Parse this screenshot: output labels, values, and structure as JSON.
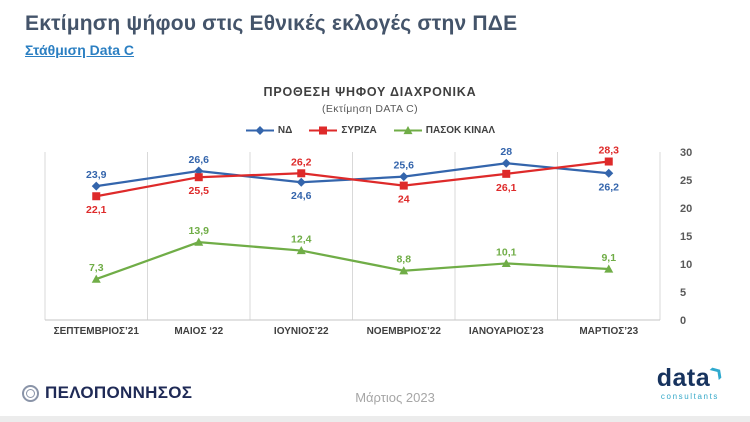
{
  "page": {
    "title": "Εκτίμηση ψήφου στις Εθνικές εκλογές στην ΠΔΕ",
    "subtitle_link": "Στάθμιση Data C"
  },
  "chart_data": {
    "type": "line",
    "title": "ΠΡΟΘΕΣΗ ΨΗΦΟΥ ΔΙΑΧΡΟΝΙΚΑ",
    "subtitle": "(Εκτίμηση DATA C)",
    "categories": [
      "ΣΕΠΤΕΜΒΡΙΟΣ’21",
      "ΜΑΙΟΣ ‘22",
      "ΙΟΥΝΙΟΣ’22",
      "ΝΟΕΜΒΡΙΟΣ’22",
      "ΙΑΝΟΥΑΡΙΟΣ’23",
      "ΜΑΡΤΙΟΣ’23"
    ],
    "series": [
      {
        "name": "ΝΔ",
        "color": "#3465AC",
        "marker": "diamond",
        "values": [
          23.9,
          26.6,
          24.6,
          25.6,
          28,
          26.2
        ],
        "labels": [
          "23,9",
          "26,6",
          "24,6",
          "25,6",
          "28",
          "26,2"
        ],
        "label_positions": [
          "above",
          "above",
          "below",
          "above",
          "above",
          "below"
        ]
      },
      {
        "name": "ΣΥΡΙΖΑ",
        "color": "#DE2A2A",
        "marker": "square",
        "values": [
          22.1,
          25.5,
          26.2,
          24,
          26.1,
          28.3
        ],
        "labels": [
          "22,1",
          "25,5",
          "26,2",
          "24",
          "26,1",
          "28,3"
        ],
        "label_positions": [
          "below",
          "below",
          "above",
          "below",
          "below",
          "above"
        ]
      },
      {
        "name": "ΠΑΣΟΚ ΚΙΝΑΛ",
        "color": "#70AD47",
        "marker": "triangle",
        "values": [
          7.3,
          13.9,
          12.4,
          8.8,
          10.1,
          9.1
        ],
        "labels": [
          "7,3",
          "13,9",
          "12,4",
          "8,8",
          "10,1",
          "9,1"
        ],
        "label_positions": [
          "above",
          "above",
          "above",
          "above",
          "above",
          "above"
        ]
      }
    ],
    "y_axis": {
      "min": 0,
      "max": 30,
      "step": 5,
      "ticks": [
        "0",
        "5",
        "10",
        "15",
        "20",
        "25",
        "30"
      ],
      "position": "right"
    },
    "x_axis": {
      "label": ""
    },
    "grid": "vertical",
    "legend_position": "top"
  },
  "footer": {
    "left_logo_text": "ΠΕΛΟΠΟΝΝΗΣΟΣ",
    "center_text": "Μάρτιος 2023",
    "right_logo": {
      "name": "data",
      "sub": "consultants"
    }
  },
  "icons": {
    "data_logo_arrow": "❯"
  },
  "colors": {
    "title": "#44546A",
    "link": "#2B7FC2",
    "nd_blue": "#3465AC",
    "syriza_red": "#DE2A2A",
    "pasok_green": "#70AD47",
    "gridline": "#D9D9D9",
    "axis_text": "#595959",
    "footer_navy": "#1F2A56",
    "logo_teal": "#35A8C8"
  }
}
